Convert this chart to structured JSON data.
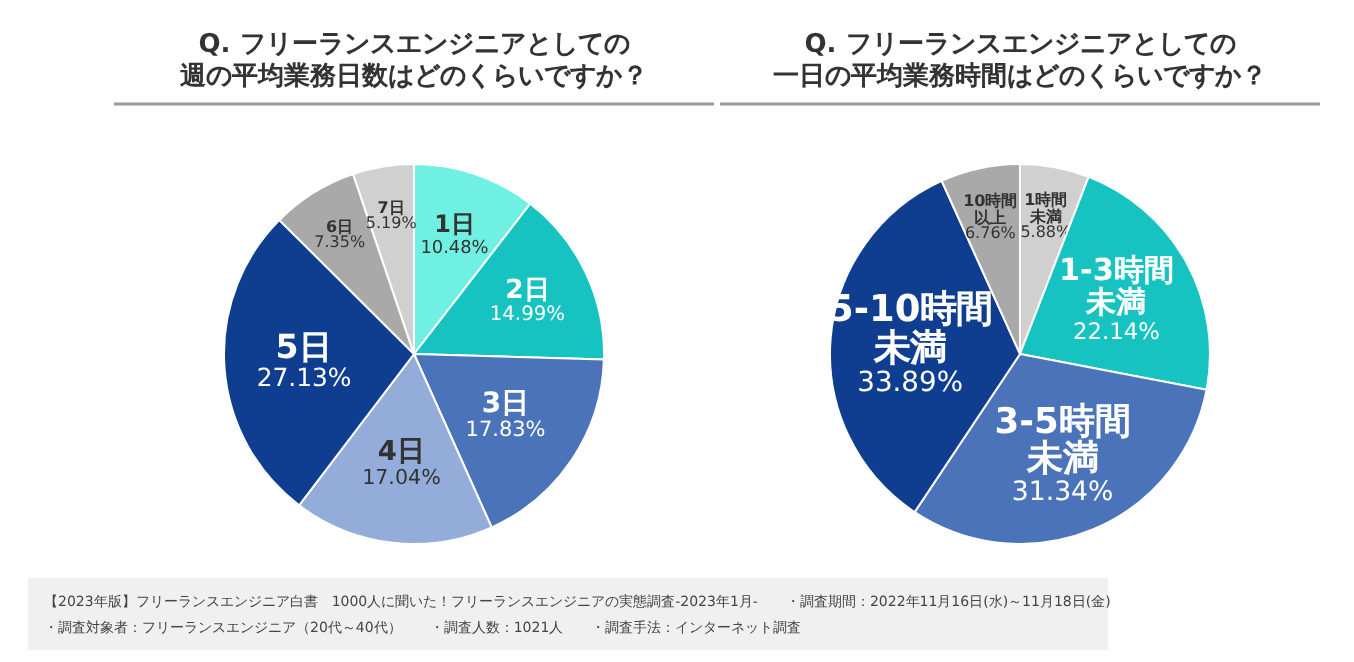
{
  "chart_data": [
    {
      "type": "pie",
      "title": "Q. フリーランスエンジニアとしての週の平均業務日数はどのくらいですか？",
      "categories": [
        "1日",
        "2日",
        "3日",
        "4日",
        "5日",
        "6日",
        "7日"
      ],
      "values": [
        10.48,
        14.99,
        17.83,
        17.04,
        27.13,
        7.35,
        5.19
      ],
      "value_labels": [
        "10.48%",
        "14.99%",
        "17.83%",
        "17.04%",
        "27.13%",
        "7.35%",
        "5.19%"
      ],
      "colors": [
        "#6ff0e2",
        "#17c3c0",
        "#4b73b9",
        "#93acd9",
        "#0f3d8f",
        "#a9a9a9",
        "#d0d0d0"
      ]
    },
    {
      "type": "pie",
      "title": "Q. フリーランスエンジニアとしての一日の平均業務時間はどのくらいですか？",
      "categories": [
        "1時間未満",
        "1-3時間未満",
        "3-5時間未満",
        "5-10時間未満",
        "10時間以上"
      ],
      "values": [
        5.88,
        22.14,
        31.34,
        33.89,
        6.76
      ],
      "value_labels": [
        "5.88%",
        "22.14%",
        "31.34%",
        "33.89%",
        "6.76%"
      ],
      "colors": [
        "#d0d0d0",
        "#17c3c0",
        "#4b73b9",
        "#0f3d8f",
        "#a9a9a9"
      ]
    },
    {
      "type": "other",
      "annotations": [
        "【2023年版】フリーランスエンジニア白書　1000人に聞いた！フリーランスエンジニアの実態調査-2023年1月-",
        "・調査期間：2022年11月16日(水)～11月18日(金)",
        "・調査対象者：フリーランスエンジニア（20代～40代）",
        "・調査人数：1021人",
        "・調査手法：インターネット調査"
      ]
    }
  ]
}
